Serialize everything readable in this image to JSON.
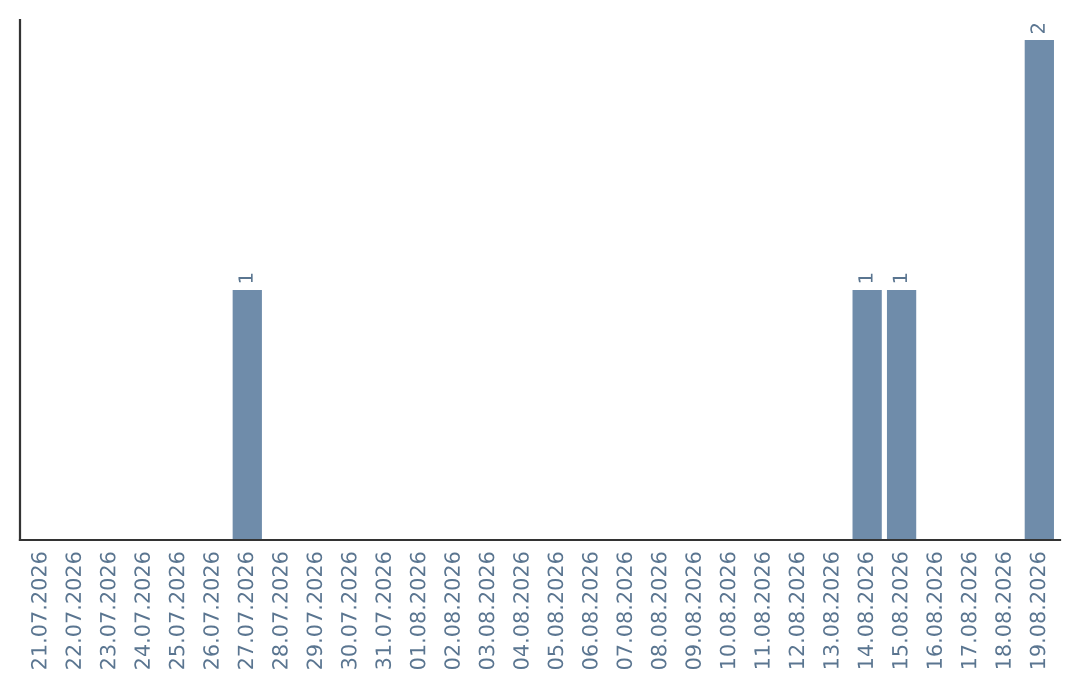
{
  "chart_data": {
    "type": "bar",
    "categories": [
      "21.07.2026",
      "22.07.2026",
      "23.07.2026",
      "24.07.2026",
      "25.07.2026",
      "26.07.2026",
      "27.07.2026",
      "28.07.2026",
      "29.07.2026",
      "30.07.2026",
      "31.07.2026",
      "01.08.2026",
      "02.08.2026",
      "03.08.2026",
      "04.08.2026",
      "05.08.2026",
      "06.08.2026",
      "07.08.2026",
      "08.08.2026",
      "09.08.2026",
      "10.08.2026",
      "11.08.2026",
      "12.08.2026",
      "13.08.2026",
      "14.08.2026",
      "15.08.2026",
      "16.08.2026",
      "17.08.2026",
      "18.08.2026",
      "19.08.2026"
    ],
    "values": [
      0,
      0,
      0,
      0,
      0,
      0,
      1,
      0,
      0,
      0,
      0,
      0,
      0,
      0,
      0,
      0,
      0,
      0,
      0,
      0,
      0,
      0,
      0,
      0,
      1,
      1,
      0,
      0,
      0,
      2
    ],
    "value_labels": [
      null,
      null,
      null,
      null,
      null,
      null,
      "1",
      null,
      null,
      null,
      null,
      null,
      null,
      null,
      null,
      null,
      null,
      null,
      null,
      null,
      null,
      null,
      null,
      null,
      "1",
      "1",
      null,
      null,
      null,
      "2"
    ],
    "color": "#6f8caa",
    "ylim": [
      0,
      2.08
    ],
    "tick_labels": "x",
    "grid": false,
    "legend": false
  }
}
